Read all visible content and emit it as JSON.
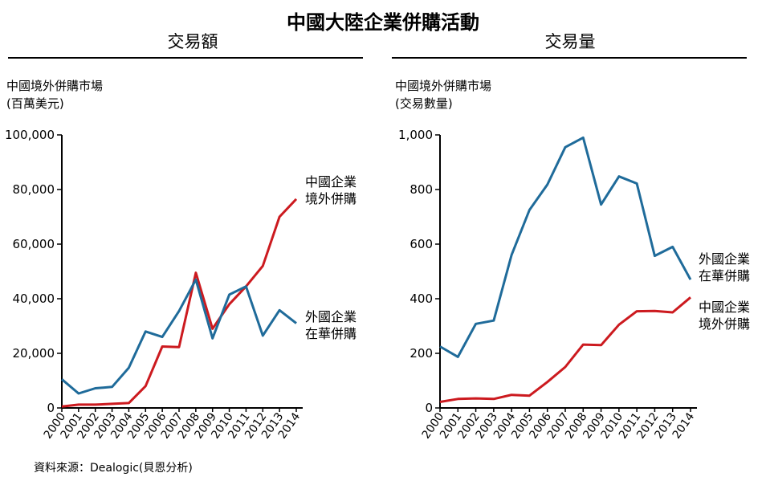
{
  "title": "中國大陸企業併購活動",
  "source": "資料來源：Dealogic(貝恩分析)",
  "colors": {
    "outbound": "#cc1a1f",
    "inbound": "#1f6b9a"
  },
  "chart_data": [
    {
      "type": "line",
      "panel_title": "交易額",
      "ylabel": [
        "中國境外併購市場",
        "(百萬美元)"
      ],
      "categories": [
        "2000",
        "2001",
        "2002",
        "2003",
        "2004",
        "2005",
        "2006",
        "2007",
        "2008",
        "2009",
        "2010",
        "2011",
        "2012",
        "2013",
        "2014"
      ],
      "ylim": [
        0,
        100000
      ],
      "yticks": [
        0,
        20000,
        40000,
        60000,
        80000,
        100000
      ],
      "ytick_labels": [
        "0",
        "20,000",
        "40,000",
        "60,000",
        "80,000",
        "100,000"
      ],
      "series": [
        {
          "name": [
            "中國企業",
            "境外併購"
          ],
          "color": "#cc1a1f",
          "values": [
            500,
            1200,
            1200,
            1500,
            1800,
            8000,
            22500,
            22300,
            49500,
            29000,
            38000,
            44500,
            52000,
            70000,
            76500
          ]
        },
        {
          "name": [
            "外國企業",
            "在華併購"
          ],
          "color": "#1f6b9a",
          "values": [
            10500,
            5300,
            7200,
            7700,
            14700,
            28000,
            26000,
            35500,
            47000,
            25500,
            41500,
            44500,
            26500,
            35800,
            31000
          ]
        }
      ]
    },
    {
      "type": "line",
      "panel_title": "交易量",
      "ylabel": [
        "中國境外併購市場",
        "(交易數量)"
      ],
      "categories": [
        "2000",
        "2001",
        "2002",
        "2003",
        "2004",
        "2005",
        "2006",
        "2007",
        "2008",
        "2009",
        "2010",
        "2011",
        "2012",
        "2013",
        "2014"
      ],
      "ylim": [
        0,
        1000
      ],
      "yticks": [
        0,
        200,
        400,
        600,
        800,
        1000
      ],
      "ytick_labels": [
        "0",
        "200",
        "400",
        "600",
        "800",
        "1,000"
      ],
      "series": [
        {
          "name": [
            "外國企業",
            "在華併購"
          ],
          "color": "#1f6b9a",
          "values": [
            225,
            187,
            308,
            320,
            560,
            725,
            818,
            955,
            990,
            745,
            848,
            822,
            557,
            590,
            470
          ]
        },
        {
          "name": [
            "中國企業",
            "境外併購"
          ],
          "color": "#cc1a1f",
          "values": [
            22,
            33,
            35,
            33,
            48,
            45,
            95,
            150,
            232,
            230,
            305,
            354,
            355,
            350,
            405
          ]
        }
      ]
    }
  ]
}
